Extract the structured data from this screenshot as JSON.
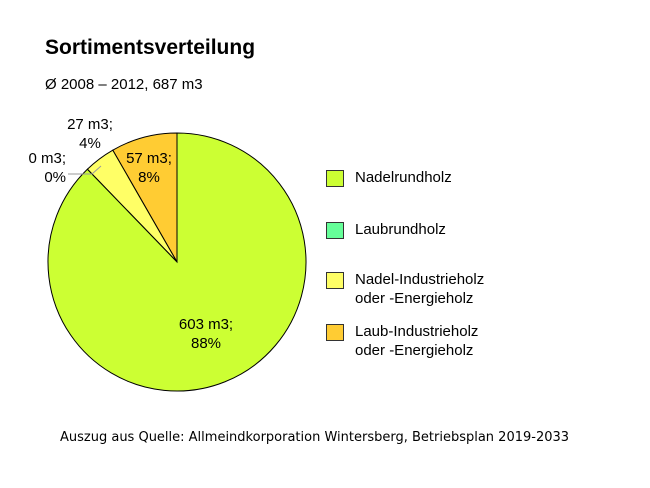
{
  "title": "Sortimentsverteilung",
  "subtitle": "Ø 2008 – 2012, 687 m3",
  "source": "Auszug aus Quelle: Allmeindkorporation Wintersberg, Betriebsplan 2019-2033",
  "chart_data": {
    "type": "pie",
    "title": "Sortimentsverteilung",
    "subtitle": "Ø 2008 – 2012, 687 m3",
    "legend_position": "right",
    "slices": [
      {
        "name": "Nadelrundholz",
        "value": 603,
        "label_value": "603 m3;",
        "label_percent": "88%",
        "color": "#ccff33"
      },
      {
        "name": "Laubrundholz",
        "value": 0,
        "label_value": "0 m3;",
        "label_percent": "0%",
        "color": "#66ff99"
      },
      {
        "name": "Nadel-Industrieholz oder -Energieholz",
        "value": 27,
        "label_value": "27 m3;",
        "label_percent": "4%",
        "color": "#ffff66"
      },
      {
        "name": "Laub-Industrieholz oder -Energieholz",
        "value": 57,
        "label_value": "57 m3;",
        "label_percent": "8%",
        "color": "#ffcc33"
      }
    ],
    "legend": [
      {
        "lines": [
          "Nadelrundholz"
        ],
        "color": "#ccff33"
      },
      {
        "lines": [
          "Laubrundholz"
        ],
        "color": "#66ff99"
      },
      {
        "lines": [
          "Nadel-Industrieholz",
          "oder -Energieholz"
        ],
        "color": "#ffff66"
      },
      {
        "lines": [
          "Laub-Industrieholz",
          "oder -Energieholz"
        ],
        "color": "#ffcc33"
      }
    ]
  }
}
